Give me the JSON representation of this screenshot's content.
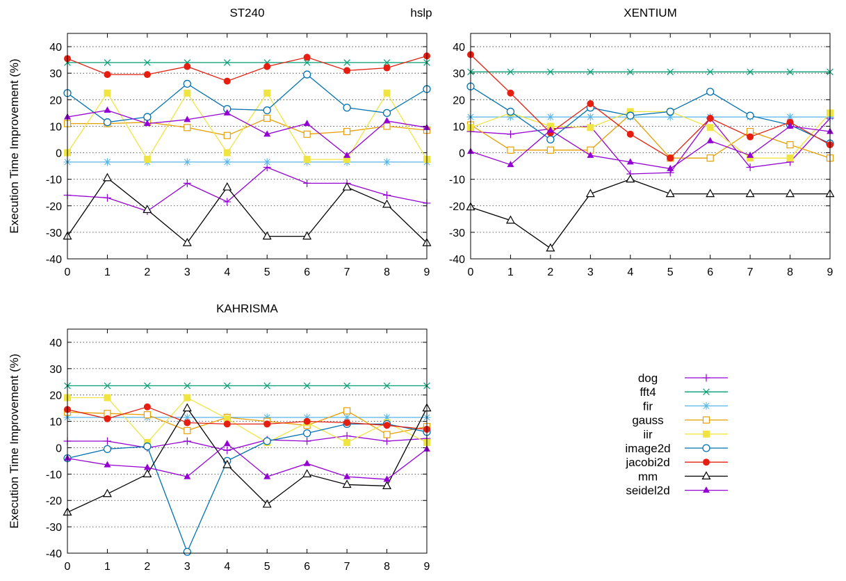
{
  "figure": {
    "suptitle": "hslp"
  },
  "legend": {
    "items": [
      "dog",
      "fft4",
      "fir",
      "gauss",
      "iir",
      "image2d",
      "jacobi2d",
      "mm",
      "seidel2d"
    ]
  },
  "series_styles": {
    "dog": {
      "color": "#9400d3",
      "marker": "plus"
    },
    "fft4": {
      "color": "#009e73",
      "marker": "cross"
    },
    "fir": {
      "color": "#56b4e9",
      "marker": "star"
    },
    "gauss": {
      "color": "#e69f00",
      "marker": "open-square"
    },
    "iir": {
      "color": "#f0e442",
      "marker": "filled-square"
    },
    "image2d": {
      "color": "#0072b2",
      "marker": "open-circle"
    },
    "jacobi2d": {
      "color": "#e51e10",
      "marker": "filled-circle"
    },
    "mm": {
      "color": "#000000",
      "marker": "open-triangle"
    },
    "seidel2d": {
      "color": "#9400d3",
      "marker": "filled-triangle"
    }
  },
  "chart_data": [
    {
      "type": "line",
      "title": "ST240",
      "ylabel": "Execution Time Improvement (%)",
      "xlabel": "",
      "x": [
        0,
        1,
        2,
        3,
        4,
        5,
        6,
        7,
        8,
        9
      ],
      "xlim": [
        0,
        9
      ],
      "ylim": [
        -40,
        45
      ],
      "yticks": [
        -40,
        -30,
        -20,
        -10,
        0,
        10,
        20,
        30,
        40
      ],
      "grid": true,
      "series": [
        {
          "name": "dog",
          "values": [
            -16,
            -17,
            -22,
            -11.5,
            -18.5,
            -5.5,
            -11.5,
            -11.5,
            -16,
            -19
          ]
        },
        {
          "name": "fft4",
          "values": [
            34,
            34,
            34,
            34,
            34,
            34,
            34,
            34,
            34,
            34
          ]
        },
        {
          "name": "fir",
          "values": [
            -3.5,
            -3.5,
            -3.5,
            -3.5,
            -3.5,
            -3.5,
            -3.5,
            -3.5,
            -3.5,
            -3.5
          ]
        },
        {
          "name": "gauss",
          "values": [
            11,
            11,
            11.5,
            9.5,
            6.5,
            13,
            7,
            8,
            10,
            8.5
          ]
        },
        {
          "name": "iir",
          "values": [
            0,
            22.5,
            -2.5,
            22.5,
            0,
            22.5,
            -2.5,
            -2.5,
            22.5,
            -2.5
          ]
        },
        {
          "name": "image2d",
          "values": [
            22.5,
            11.5,
            13.5,
            26,
            16.5,
            16,
            29.5,
            17,
            15,
            24
          ]
        },
        {
          "name": "jacobi2d",
          "values": [
            35.5,
            29.5,
            29.5,
            32.5,
            27,
            32.5,
            36,
            31,
            32,
            36.5
          ]
        },
        {
          "name": "mm",
          "values": [
            -31.5,
            -9.5,
            -21.5,
            -34,
            -13,
            -31.5,
            -31.5,
            -13,
            -19.5,
            -34
          ]
        },
        {
          "name": "seidel2d",
          "values": [
            13.5,
            16,
            11,
            12.5,
            15,
            7,
            11,
            -1,
            12,
            9.5
          ]
        }
      ]
    },
    {
      "type": "line",
      "title": "XENTIUM",
      "ylabel": "",
      "xlabel": "",
      "x": [
        0,
        1,
        2,
        3,
        4,
        5,
        6,
        7,
        8,
        9
      ],
      "xlim": [
        0,
        9
      ],
      "ylim": [
        -40,
        45
      ],
      "yticks": [
        -40,
        -30,
        -20,
        -10,
        0,
        10,
        20,
        30,
        40
      ],
      "grid": true,
      "series": [
        {
          "name": "dog",
          "values": [
            8,
            7,
            9,
            10,
            -8,
            -7.5,
            13,
            -5.5,
            -3.5,
            13
          ]
        },
        {
          "name": "fft4",
          "values": [
            30.5,
            30.5,
            30.5,
            30.5,
            30.5,
            30.5,
            30.5,
            30.5,
            30.5,
            30.5
          ]
        },
        {
          "name": "fir",
          "values": [
            13.5,
            13.5,
            13.5,
            13.5,
            13.5,
            13.5,
            13.5,
            13.5,
            13.5,
            13.5
          ]
        },
        {
          "name": "gauss",
          "values": [
            10.5,
            1,
            1,
            1,
            14.5,
            -2,
            -2,
            8,
            3,
            -2
          ]
        },
        {
          "name": "iir",
          "values": [
            9.5,
            15,
            10,
            9.5,
            15.5,
            15.5,
            9.5,
            -2,
            -2,
            15
          ]
        },
        {
          "name": "image2d",
          "values": [
            25,
            15.5,
            5,
            17,
            14,
            15.5,
            23,
            14,
            10.5,
            3.5
          ]
        },
        {
          "name": "jacobi2d",
          "values": [
            37,
            22.5,
            7.5,
            18.5,
            7,
            -2,
            13,
            6,
            11.5,
            3
          ]
        },
        {
          "name": "mm",
          "values": [
            -20.5,
            -25.5,
            -36,
            -15.5,
            -10,
            -15.5,
            -15.5,
            -15.5,
            -15.5,
            -15.5
          ]
        },
        {
          "name": "seidel2d",
          "values": [
            0.5,
            -4.5,
            8.5,
            -1,
            -3.5,
            -6,
            4.5,
            -1,
            10,
            8
          ]
        }
      ]
    },
    {
      "type": "line",
      "title": "KAHRISMA",
      "ylabel": "Execution Time Improvement (%)",
      "xlabel": "",
      "x": [
        0,
        1,
        2,
        3,
        4,
        5,
        6,
        7,
        8,
        9
      ],
      "xlim": [
        0,
        9
      ],
      "ylim": [
        -40,
        45
      ],
      "yticks": [
        -40,
        -30,
        -20,
        -10,
        0,
        10,
        20,
        30,
        40
      ],
      "grid": true,
      "series": [
        {
          "name": "dog",
          "values": [
            2.5,
            2.5,
            0,
            2.5,
            -1,
            3,
            2.5,
            4.5,
            2.5,
            3.5
          ]
        },
        {
          "name": "fft4",
          "values": [
            23.5,
            23.5,
            23.5,
            23.5,
            23.5,
            23.5,
            23.5,
            23.5,
            23.5,
            23.5
          ]
        },
        {
          "name": "fir",
          "values": [
            11.5,
            11.5,
            11.5,
            11.5,
            11.5,
            11.5,
            11.5,
            11.5,
            11.5,
            11.5
          ]
        },
        {
          "name": "gauss",
          "values": [
            13.5,
            13,
            12.5,
            6.5,
            11.5,
            10,
            8.5,
            14,
            5,
            8
          ]
        },
        {
          "name": "iir",
          "values": [
            19,
            19,
            2,
            19,
            11,
            2,
            9.5,
            2,
            9.5,
            2
          ]
        },
        {
          "name": "image2d",
          "values": [
            -4,
            -0.5,
            0.5,
            -39.5,
            -5,
            2.5,
            5.5,
            9,
            9,
            6
          ]
        },
        {
          "name": "jacobi2d",
          "values": [
            14.5,
            11,
            15.5,
            9.5,
            9,
            9,
            10,
            9.5,
            8.5,
            7
          ]
        },
        {
          "name": "mm",
          "values": [
            -24.5,
            -17.5,
            -10,
            15,
            -6.5,
            -21.5,
            -10,
            -14,
            -14.5,
            15
          ]
        },
        {
          "name": "seidel2d",
          "values": [
            -4,
            -6.5,
            -7.5,
            -11,
            1.5,
            -11,
            -6,
            -11,
            -12,
            -0.5
          ]
        }
      ]
    }
  ]
}
